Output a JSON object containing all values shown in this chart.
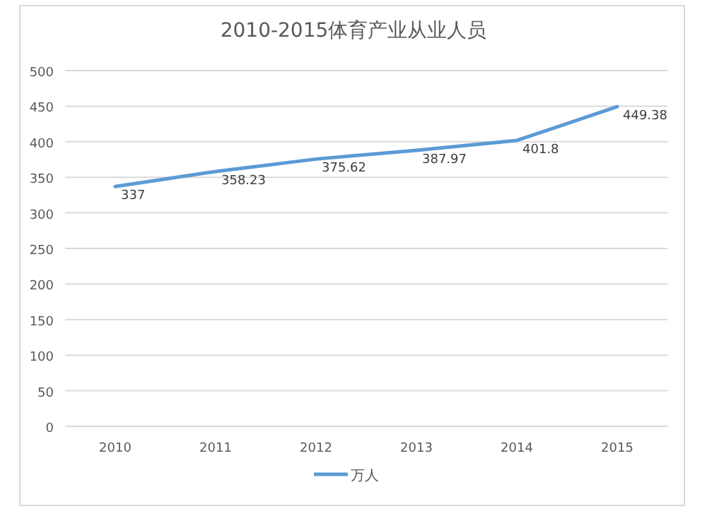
{
  "chart_data": {
    "type": "line",
    "title": "2010-2015体育产业从业人员",
    "categories": [
      "2010",
      "2011",
      "2012",
      "2013",
      "2014",
      "2015"
    ],
    "series": [
      {
        "name": "万人",
        "color": "#5b9bd5",
        "values": [
          337,
          358.23,
          375.62,
          387.97,
          401.8,
          449.38
        ]
      }
    ],
    "ylim": [
      0,
      500
    ],
    "yticks": [
      0,
      50,
      100,
      150,
      200,
      250,
      300,
      350,
      400,
      450,
      500
    ],
    "grid": "y",
    "legend": "bottom",
    "data_labels": true,
    "marker": "none",
    "line_style": "solid"
  }
}
